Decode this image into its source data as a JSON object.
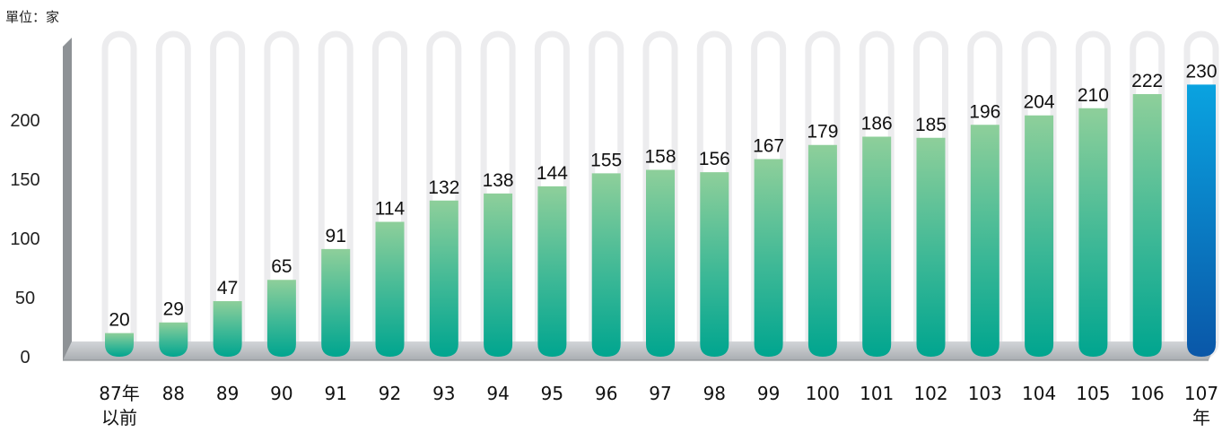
{
  "chart_data": {
    "type": "bar",
    "unit_label": "單位：家",
    "categories": [
      [
        "87年",
        "以前"
      ],
      [
        "88"
      ],
      [
        "89"
      ],
      [
        "90"
      ],
      [
        "91"
      ],
      [
        "92"
      ],
      [
        "93"
      ],
      [
        "94"
      ],
      [
        "95"
      ],
      [
        "96"
      ],
      [
        "97"
      ],
      [
        "98"
      ],
      [
        "99"
      ],
      [
        "100"
      ],
      [
        "101"
      ],
      [
        "102"
      ],
      [
        "103"
      ],
      [
        "104"
      ],
      [
        "105"
      ],
      [
        "106"
      ],
      [
        "107",
        "年"
      ]
    ],
    "values": [
      20,
      29,
      47,
      65,
      91,
      114,
      132,
      138,
      144,
      155,
      158,
      156,
      167,
      179,
      186,
      185,
      196,
      204,
      210,
      222,
      230
    ],
    "highlight_index": 20,
    "yticks": [
      0,
      50,
      100,
      150,
      200
    ],
    "ylim": [
      0,
      250
    ],
    "grid": false,
    "colors": {
      "bar_top": "#8ecf9a",
      "bar_bottom": "#00a58f",
      "highlight_top": "#0aa3e0",
      "highlight_bottom": "#0a57a8",
      "track": "#ececee",
      "floor": "#b9bdc1",
      "wall": "#8e9296"
    }
  }
}
